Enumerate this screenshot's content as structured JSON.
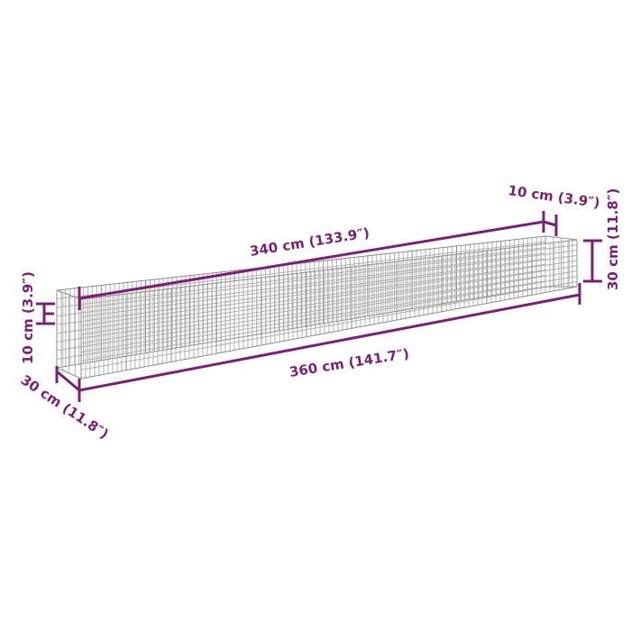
{
  "accent_color": "#7b1f74",
  "product": "gabion-planter",
  "dimensions": {
    "inner_length": "340 cm (133.9″)",
    "outer_length": "360 cm (141.7″)",
    "wall_right": "10 cm (3.9″)",
    "wall_left": "10 cm (3.9″)",
    "height": "30 cm (11.8″)",
    "depth": "30 cm (11.8″)"
  }
}
